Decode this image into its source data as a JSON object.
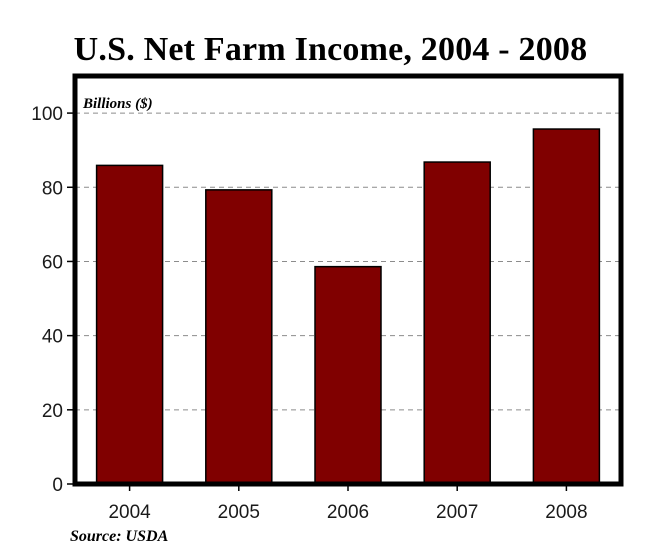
{
  "chart_data": {
    "type": "bar",
    "title": "U.S. Net Farm Income, 2004 - 2008",
    "unit_label": "Billions ($)",
    "source": "Source: USDA",
    "categories": [
      "2004",
      "2005",
      "2006",
      "2007",
      "2008"
    ],
    "values": [
      85.9,
      79.3,
      58.6,
      86.8,
      95.7
    ],
    "ylim": [
      0,
      110
    ],
    "yticks": [
      "0",
      "20",
      "40",
      "60",
      "80",
      "100"
    ],
    "ytick_values": [
      0,
      20,
      40,
      60,
      80,
      100
    ],
    "grid": true,
    "bar_color": "#800000",
    "frame_color": "#000000",
    "grid_color": "#8c8c8c"
  }
}
